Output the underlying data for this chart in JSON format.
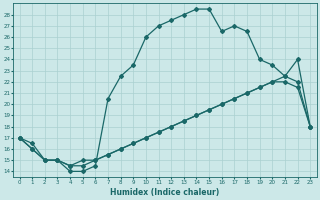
{
  "xlabel": "Humidex (Indice chaleur)",
  "bg_color": "#cce8e8",
  "grid_color": "#aad0d0",
  "line_color": "#1a6868",
  "xlim": [
    -0.5,
    23.5
  ],
  "ylim": [
    13.5,
    29.0
  ],
  "xticks": [
    0,
    1,
    2,
    3,
    4,
    5,
    6,
    7,
    8,
    9,
    10,
    11,
    12,
    13,
    14,
    15,
    16,
    17,
    18,
    19,
    20,
    21,
    22,
    23
  ],
  "yticks": [
    14,
    15,
    16,
    17,
    18,
    19,
    20,
    21,
    22,
    23,
    24,
    25,
    26,
    27,
    28
  ],
  "line1_x": [
    0,
    1,
    2,
    3,
    4,
    5,
    6,
    7,
    8,
    9,
    10,
    11,
    12,
    13,
    14,
    15,
    16,
    17,
    18,
    19,
    20,
    21,
    22,
    23
  ],
  "line1_y": [
    17.0,
    16.5,
    15.0,
    15.0,
    14.0,
    14.0,
    14.5,
    20.5,
    22.5,
    23.5,
    26.0,
    27.0,
    27.5,
    28.0,
    28.5,
    28.5,
    26.5,
    27.0,
    26.5,
    24.0,
    23.5,
    22.5,
    24.0,
    18.0
  ],
  "line2_x": [
    0,
    1,
    2,
    3,
    4,
    5,
    6,
    7,
    8,
    9,
    10,
    11,
    12,
    13,
    14,
    15,
    16,
    17,
    18,
    19,
    20,
    21,
    22,
    23
  ],
  "line2_y": [
    17.0,
    16.0,
    15.0,
    15.0,
    14.5,
    15.0,
    15.0,
    15.5,
    16.0,
    16.5,
    17.0,
    17.5,
    18.0,
    18.5,
    19.0,
    19.5,
    20.0,
    20.5,
    21.0,
    21.5,
    22.0,
    22.0,
    21.5,
    18.0
  ],
  "line3_x": [
    0,
    1,
    2,
    3,
    4,
    5,
    6,
    7,
    8,
    9,
    10,
    11,
    12,
    13,
    14,
    15,
    16,
    17,
    18,
    19,
    20,
    21,
    22,
    23
  ],
  "line3_y": [
    17.0,
    16.0,
    15.0,
    15.0,
    14.5,
    14.5,
    15.0,
    15.5,
    16.0,
    16.5,
    17.0,
    17.5,
    18.0,
    18.5,
    19.0,
    19.5,
    20.0,
    20.5,
    21.0,
    21.5,
    22.0,
    22.5,
    22.0,
    18.0
  ]
}
